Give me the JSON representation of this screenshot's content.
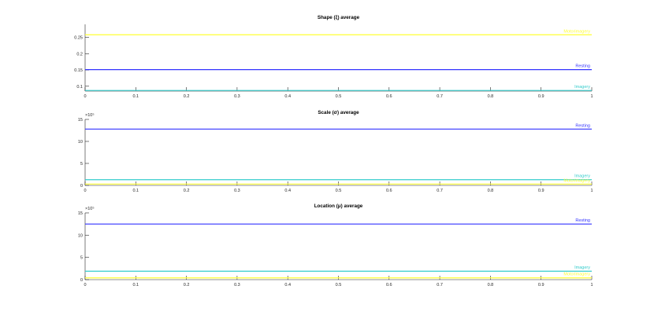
{
  "chart_data": [
    {
      "type": "line",
      "title": "Shape (ξ) average",
      "xlim": [
        0,
        1
      ],
      "ylim": [
        0.085,
        0.29
      ],
      "x_ticks": [
        "0",
        "0.1",
        "0.2",
        "0.3",
        "0.4",
        "0.5",
        "0.6",
        "0.7",
        "0.8",
        "0.9",
        "1"
      ],
      "y_ticks": [
        0.1,
        0.15,
        0.2,
        0.25
      ],
      "y_tick_labels": [
        "0.1",
        "0.15",
        "0.2",
        "0.25"
      ],
      "y_exponent": null,
      "series": [
        {
          "name": "Motorimagery",
          "color": "#ffff33",
          "x": [
            0,
            1
          ],
          "y": [
            0.258,
            0.258
          ]
        },
        {
          "name": "Resting",
          "color": "#3333ff",
          "x": [
            0,
            1
          ],
          "y": [
            0.151,
            0.151
          ]
        },
        {
          "name": "Imagery",
          "color": "#33cccc",
          "x": [
            0,
            1
          ],
          "y": [
            0.087,
            0.087
          ]
        }
      ]
    },
    {
      "type": "line",
      "title": "Scale (σ) average",
      "xlim": [
        0,
        1
      ],
      "ylim": [
        0,
        15
      ],
      "x_ticks": [
        "0",
        "0.1",
        "0.2",
        "0.3",
        "0.4",
        "0.5",
        "0.6",
        "0.7",
        "0.8",
        "0.9",
        "1"
      ],
      "y_ticks": [
        0,
        5,
        10,
        15
      ],
      "y_tick_labels": [
        "0",
        "5",
        "10",
        "15"
      ],
      "y_exponent": "×10⁵",
      "series": [
        {
          "name": "Resting",
          "color": "#3333ff",
          "x": [
            0,
            1
          ],
          "y": [
            12.8,
            12.8
          ]
        },
        {
          "name": "Imagery",
          "color": "#33cccc",
          "x": [
            0,
            1
          ],
          "y": [
            1.3,
            1.3
          ]
        },
        {
          "name": "Motorimagery",
          "color": "#ffff33",
          "x": [
            0,
            1
          ],
          "y": [
            0.3,
            0.3
          ]
        }
      ]
    },
    {
      "type": "line",
      "title": "Location (μ) average",
      "xlim": [
        0,
        1
      ],
      "ylim": [
        0,
        15
      ],
      "x_ticks": [
        "0",
        "0.1",
        "0.2",
        "0.3",
        "0.4",
        "0.5",
        "0.6",
        "0.7",
        "0.8",
        "0.9",
        "1"
      ],
      "y_ticks": [
        0,
        5,
        10,
        15
      ],
      "y_tick_labels": [
        "0",
        "5",
        "10",
        "15"
      ],
      "y_exponent": "×10⁵",
      "series": [
        {
          "name": "Resting",
          "color": "#3333ff",
          "x": [
            0,
            1
          ],
          "y": [
            12.5,
            12.5
          ]
        },
        {
          "name": "Imagery",
          "color": "#33cccc",
          "x": [
            0,
            1
          ],
          "y": [
            1.9,
            1.9
          ]
        },
        {
          "name": "Motorimagery",
          "color": "#ffff33",
          "x": [
            0,
            1
          ],
          "y": [
            0.4,
            0.4
          ]
        }
      ]
    }
  ]
}
